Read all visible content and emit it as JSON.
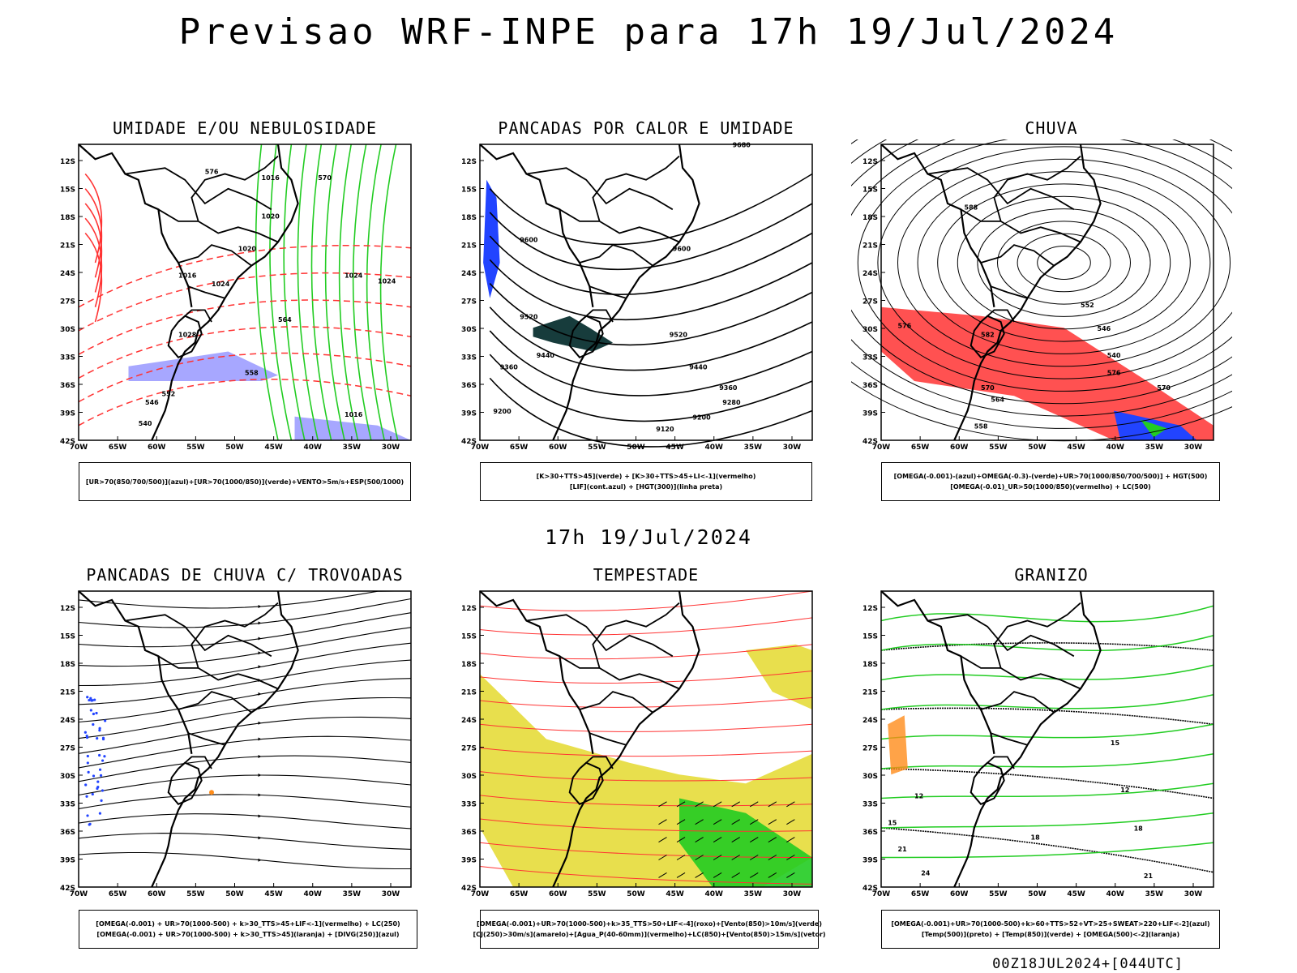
{
  "title": "Previsao WRF-INPE  para 17h 19/Jul/2024",
  "subtitle": "17h 19/Jul/2024",
  "footer": "00Z18JUL2024+[044UTC]",
  "axes": {
    "lat_labels": [
      "12S",
      "15S",
      "18S",
      "21S",
      "24S",
      "27S",
      "30S",
      "33S",
      "36S",
      "39S",
      "42S"
    ],
    "lon_labels": [
      "70W",
      "65W",
      "60W",
      "55W",
      "50W",
      "45W",
      "40W",
      "35W",
      "30W"
    ]
  },
  "colors": {
    "red": "#ff3333",
    "green": "#22cc22",
    "blue": "#2244ff",
    "lavender": "#a7a7ff",
    "yellow": "#e6dc3a",
    "darkteal": "#173c3c",
    "orange": "#ff8c1a"
  },
  "panels": [
    {
      "title": "UMIDADE E/OU NEBULOSIDADE",
      "legend": [
        "[UR>70(850/700/500)](azul)+[UR>70(1000/850)](verde)+VENTO>5m/s+ESP(500/1000)"
      ],
      "contour_labels": [
        "1020",
        "1016",
        "1020",
        "1024",
        "1016",
        "1024",
        "1024",
        "1028",
        "1016",
        "576",
        "570",
        "564",
        "558",
        "552",
        "546",
        "540"
      ]
    },
    {
      "title": "PANCADAS POR CALOR E UMIDADE",
      "legend": [
        "[K>30+TTS>45](verde) + [K>30+TTS>45+LI<-1](vermelho)",
        "[LIF](cont.azul) + [HGT(300)](linha preta)"
      ],
      "contour_labels": [
        "9680",
        "9600",
        "9600",
        "9520",
        "9520",
        "9440",
        "9440",
        "9360",
        "9360",
        "9280",
        "9200",
        "9200",
        "9120"
      ]
    },
    {
      "title": "CHUVA",
      "legend": [
        "[OMEGA(-0.001)-(azul)+OMEGA(-0.3)-(verde)+UR>70(1000/850/700/500)] + HGT(500)",
        "[OMEGA(-0.01)_UR>50(1000/850)(vermelho) + LC(500)"
      ],
      "contour_labels": [
        "582",
        "588",
        "576",
        "570",
        "564",
        "558",
        "552",
        "546",
        "540",
        "576",
        "570"
      ]
    },
    {
      "title": "PANCADAS DE CHUVA C/ TROVOADAS",
      "legend": [
        "[OMEGA(-0.001) + UR>70(1000-500) + k>30_TTS>45+LIF<-1](vermelho) + LC(250)",
        "[OMEGA(-0.001) + UR>70(1000-500) + k>30_TTS>45](laranja) + [DIVG(250)](azul)"
      ],
      "contour_labels": []
    },
    {
      "title": "TEMPESTADE",
      "legend": [
        "[OMEGA(-0.001)+UR>70(1000-500)+k>35_TTS>50+LIF<-4](roxo)+[Vento(850)>10m/s](verde)",
        "[CJ(250)>30m/s](amarelo)+[Agua_P(40-60mm)](vermelho)+LC(850)+[Vento(850)>15m/s](vetor)"
      ],
      "contour_labels": []
    },
    {
      "title": "GRANIZO",
      "legend": [
        "[OMEGA(-0.001)+UR>70(1000-500)+k>60+TTS>52+VT>25+SWEAT>220+LIF<-2](azul)",
        "[Temp(500)](preto) + [Temp(850)](verde) + [OMEGA(500)<-2](laranja)"
      ],
      "contour_labels": [
        "12",
        "15",
        "18",
        "21",
        "24",
        "12",
        "15",
        "18",
        "21"
      ]
    }
  ]
}
